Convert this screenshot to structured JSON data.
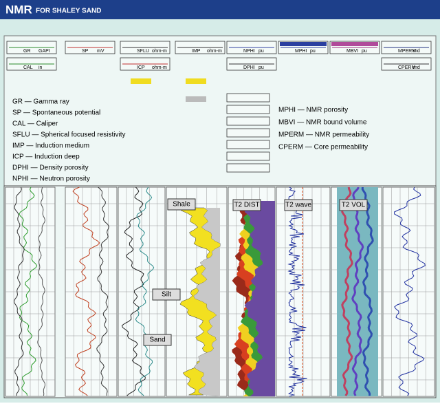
{
  "header": {
    "title": "NMR",
    "subtitle": "FOR SHALEY SAND"
  },
  "header_boxes": [
    {
      "label": "GR",
      "unit": "GAPI"
    },
    {
      "label": "SP",
      "unit": "mV"
    },
    {
      "label": "SFLU",
      "unit": "ohm-m"
    },
    {
      "label": "IMP",
      "unit": "ohm-m"
    },
    {
      "label": "NPHI",
      "unit": "pu"
    },
    {
      "label": "MPHI",
      "unit": "pu"
    },
    {
      "label": "MBVI",
      "unit": "pu"
    },
    {
      "label": "MPERM",
      "unit": "md"
    },
    {
      "label": "CAL",
      "unit": "in"
    },
    {
      "label": "ICP",
      "unit": "ohm-m"
    },
    {
      "label": "DPHI",
      "unit": "pu"
    },
    {
      "label": "CPERM",
      "unit": "md"
    }
  ],
  "legend_left": [
    "GR — Gamma ray",
    "SP — Spontaneous potential",
    "CAL — Caliper",
    "SFLU — Spherical focused resistivity",
    "IMP — Induction medium",
    "ICP — Induction deep",
    "DPHI — Density porosity",
    "NPHI — Neutron porosity"
  ],
  "legend_right": [
    "MPHI — NMR porosity",
    "MBVI — NMR bound volume",
    "MPERM — NMR permeability",
    "CPERM — Core permeability"
  ],
  "track_labels": {
    "shale": "Shale",
    "silt": "Silt",
    "sand": "Sand",
    "t2_dist": "T2 DIST",
    "t2_wave": "T2 wave",
    "t2_vol": "T2 VOL"
  }
}
